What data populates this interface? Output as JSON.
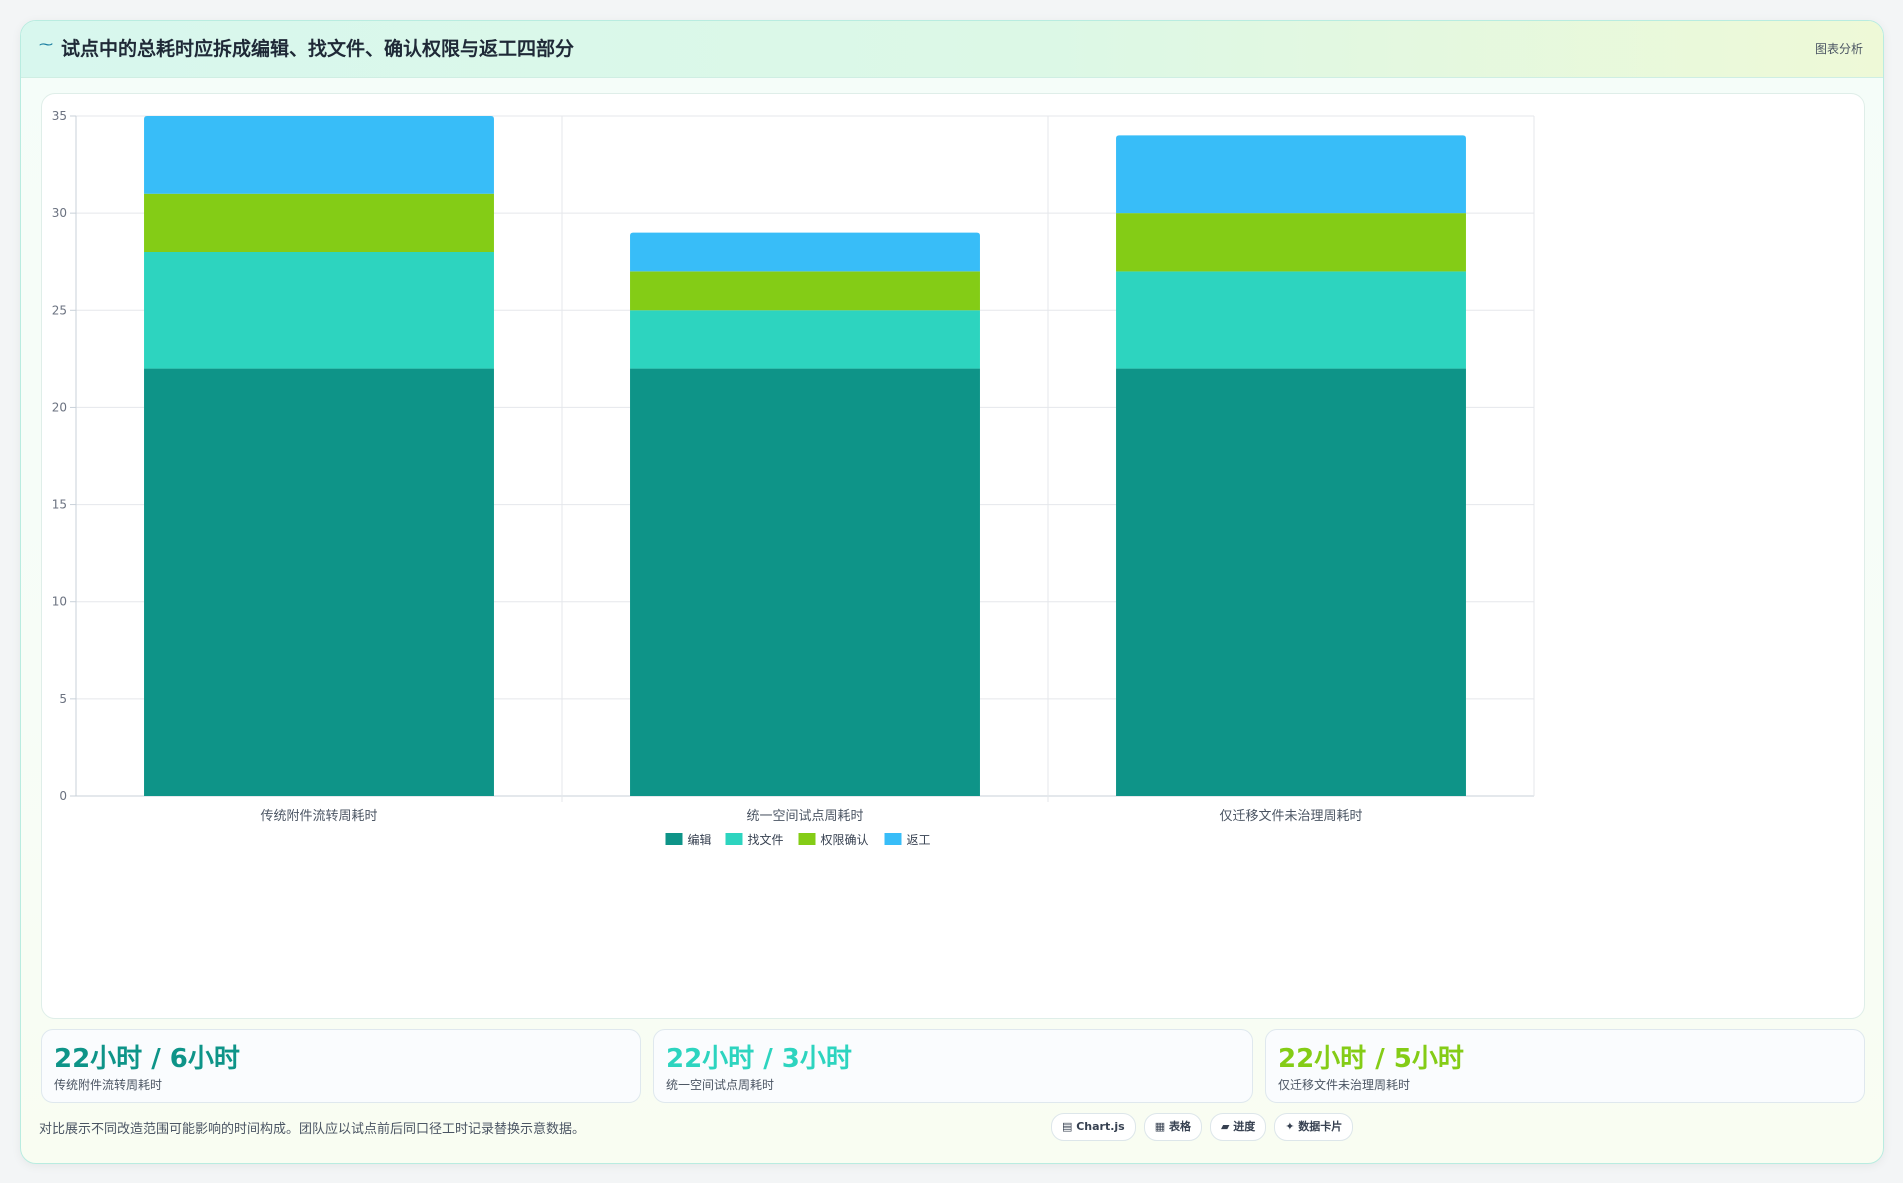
{
  "header": {
    "icon": "wave-icon",
    "title": "试点中的总耗时应拆成编辑、找文件、确认权限与返工四部分",
    "tag": "图表分析"
  },
  "colors": {
    "edit": "#0e9488",
    "find": "#2dd4bf",
    "permission": "#84cc16",
    "rework": "#38bdf8"
  },
  "chart_data": {
    "type": "bar",
    "stacked": true,
    "categories": [
      "传统附件流转周耗时",
      "统一空间试点周耗时",
      "仅迁移文件未治理周耗时"
    ],
    "series": [
      {
        "name": "编辑",
        "values": [
          22,
          22,
          22
        ],
        "color": "#0e9488"
      },
      {
        "name": "找文件",
        "values": [
          6,
          3,
          5
        ],
        "color": "#2dd4bf"
      },
      {
        "name": "权限确认",
        "values": [
          3,
          2,
          3
        ],
        "color": "#84cc16"
      },
      {
        "name": "返工",
        "values": [
          4,
          2,
          4
        ],
        "color": "#38bdf8"
      }
    ],
    "ylim": [
      0,
      35
    ],
    "yticks": [
      0,
      5,
      10,
      15,
      20,
      25,
      30,
      35
    ],
    "grid": true,
    "legend_position": "bottom"
  },
  "stats": [
    {
      "value": "22小时 / 6小时",
      "label": "传统附件流转周耗时",
      "color": "#0e9488"
    },
    {
      "value": "22小时 / 3小时",
      "label": "统一空间试点周耗时",
      "color": "#2dd4bf"
    },
    {
      "value": "22小时 / 5小时",
      "label": "仅迁移文件未治理周耗时",
      "color": "#84cc16"
    }
  ],
  "footer": {
    "note": "对比展示不同改造范围可能影响的时间构成。团队应以试点前后同口径工时记录替换示意数据。",
    "pills": [
      "▤ Chart.js",
      "▦ 表格",
      "▰ 进度",
      "✦ 数据卡片"
    ]
  }
}
